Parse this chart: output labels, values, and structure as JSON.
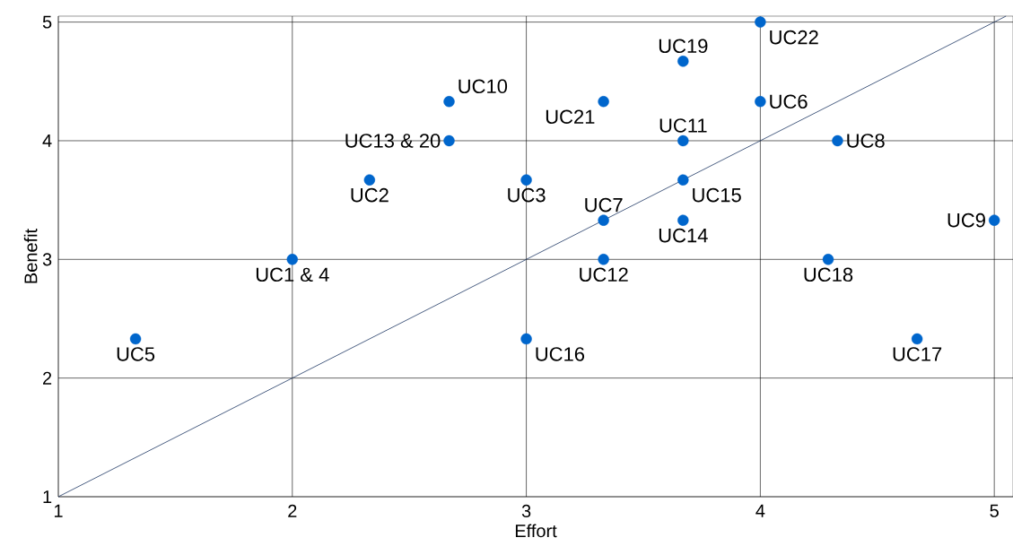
{
  "chart_data": {
    "type": "scatter",
    "xlabel": "Effort",
    "ylabel": "Benefit",
    "xlim": [
      1,
      5.08
    ],
    "ylim": [
      1,
      5.05
    ],
    "xticks": [
      1,
      2,
      3,
      4,
      5
    ],
    "yticks": [
      1,
      2,
      3,
      4,
      5
    ],
    "grid": true,
    "series": [
      {
        "type": "line",
        "color": "#1f3864",
        "marker": "none",
        "line_style": "solid",
        "x": [
          1,
          5.05
        ],
        "values": [
          1,
          5.05
        ]
      },
      {
        "color": "#0066cc",
        "marker": "circle",
        "x": [
          4,
          3.67,
          2.67,
          3.33,
          4,
          2.67,
          3.67,
          4.33,
          2.33,
          3,
          3.67,
          3.33,
          3.67,
          5,
          2,
          3.33,
          4.29,
          1.33,
          3,
          4.67
        ],
        "values": [
          5,
          4.67,
          4.33,
          4.33,
          4.33,
          4,
          4,
          4,
          3.67,
          3.67,
          3.67,
          3.33,
          3.33,
          3.33,
          3,
          3,
          3,
          2.33,
          2.33,
          2.33
        ]
      }
    ],
    "annotations": [
      {
        "text": "UC22",
        "x": 4,
        "y": 5
      },
      {
        "text": "UC19",
        "x": 3.67,
        "y": 4.67
      },
      {
        "text": "UC10",
        "x": 2.67,
        "y": 4.33
      },
      {
        "text": "UC21",
        "x": 3.33,
        "y": 4.33
      },
      {
        "text": "UC6",
        "x": 4,
        "y": 4.33
      },
      {
        "text": "UC13 & 20",
        "x": 2.67,
        "y": 4
      },
      {
        "text": "UC11",
        "x": 3.67,
        "y": 4
      },
      {
        "text": "UC8",
        "x": 4.33,
        "y": 4
      },
      {
        "text": "UC2",
        "x": 2.33,
        "y": 3.67
      },
      {
        "text": "UC3",
        "x": 3,
        "y": 3.67
      },
      {
        "text": "UC15",
        "x": 3.67,
        "y": 3.67
      },
      {
        "text": "UC7",
        "x": 3.33,
        "y": 3.33
      },
      {
        "text": "UC14",
        "x": 3.67,
        "y": 3.33
      },
      {
        "text": "UC9",
        "x": 5,
        "y": 3.33
      },
      {
        "text": "UC1 & 4",
        "x": 2,
        "y": 3
      },
      {
        "text": "UC12",
        "x": 3.33,
        "y": 3
      },
      {
        "text": "UC18",
        "x": 4.29,
        "y": 3
      },
      {
        "text": "UC5",
        "x": 1.33,
        "y": 2.33
      },
      {
        "text": "UC16",
        "x": 3,
        "y": 2.33
      },
      {
        "text": "UC17",
        "x": 4.67,
        "y": 2.33
      }
    ]
  }
}
